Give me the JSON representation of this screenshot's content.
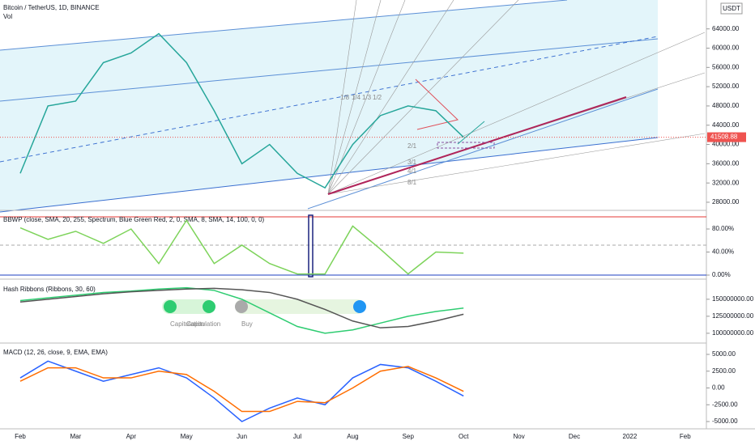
{
  "chart_data": [
    {
      "type": "line",
      "title": "Bitcoin / TetherUS, 1D, BINANCE",
      "subtitle": "Vol",
      "currency": "USDT",
      "last_value": 41508.88,
      "categories": [
        "Feb",
        null,
        "Mar",
        null,
        "Apr",
        null,
        "May",
        null,
        "Jun",
        null,
        "Jul",
        null,
        "Aug",
        null,
        "Sep",
        null,
        "Oct",
        null,
        "Nov",
        null,
        "Dec",
        null,
        "2022",
        null,
        "Feb"
      ],
      "values": [
        34000,
        48000,
        49000,
        57000,
        59000,
        63000,
        57000,
        47000,
        36000,
        40000,
        34000,
        31000,
        40000,
        46000,
        48000,
        47000,
        41508.88,
        null,
        null,
        null,
        null,
        null,
        null,
        null,
        null
      ],
      "color": "#26a69a",
      "ylim": [
        26650,
        70000
      ],
      "yticks": [
        {
          "value": 28000,
          "label": "28000.00"
        },
        {
          "value": 32000,
          "label": "32000.00"
        },
        {
          "value": 36000,
          "label": "36000.00"
        },
        {
          "value": 40000,
          "label": "40000.00"
        },
        {
          "value": 44000,
          "label": "44000.00"
        },
        {
          "value": 48000,
          "label": "48000.00"
        },
        {
          "value": 52000,
          "label": "52000.00"
        },
        {
          "value": 56000,
          "label": "56000.00"
        },
        {
          "value": 60000,
          "label": "60000.00"
        },
        {
          "value": 64000,
          "label": "64000.00"
        }
      ],
      "annotations": [
        "1/8",
        "1/4",
        "1/3",
        "1/2",
        "2/1",
        "3/1",
        "4/1",
        "8/1"
      ]
    },
    {
      "type": "line",
      "title": "BBWP (close, SMA, 20, 255, Spectrum, Blue Green Red, 2, 0, SMA, 8, SMA, 14, 100, 0, 0)",
      "values": [
        82,
        62,
        76,
        55,
        80,
        20,
        95,
        20,
        52,
        20,
        2,
        2,
        85,
        45,
        2,
        40,
        38,
        null,
        null,
        null,
        null,
        null,
        null,
        null,
        null
      ],
      "color": "#7dd35a",
      "ylim": [
        -4.2,
        109.5
      ],
      "yticks": [
        {
          "value": 0,
          "label": "0.00%"
        },
        {
          "value": 40,
          "label": "40.00%"
        },
        {
          "value": 80,
          "label": "80.00%"
        }
      ]
    },
    {
      "type": "line",
      "title": "Hash Ribbons (Ribbons, 30, 60)",
      "series": [
        {
          "color": "#2ecc71",
          "values": [
            148000000,
            152000000,
            156000000,
            160000000,
            162000000,
            165000000,
            167000000,
            163000000,
            150000000,
            130000000,
            110000000,
            100000000,
            105000000,
            115000000,
            125000000,
            132000000,
            137000000,
            null,
            null,
            null,
            null,
            null,
            null,
            null,
            null
          ]
        },
        {
          "color": "#555555",
          "values": [
            146000000,
            150000000,
            154000000,
            158000000,
            161000000,
            163000000,
            165000000,
            166000000,
            164000000,
            160000000,
            150000000,
            135000000,
            118000000,
            108000000,
            110000000,
            118000000,
            128000000,
            null,
            null,
            null,
            null,
            null,
            null,
            null,
            null
          ]
        }
      ],
      "ylim": [
        88000000,
        176000000
      ],
      "yticks": [
        {
          "value": 100000000,
          "label": "100000000.00"
        },
        {
          "value": 125000000,
          "label": "125000000.00"
        },
        {
          "value": 150000000,
          "label": "150000000.00"
        }
      ],
      "annotations": [
        "Capitulation",
        "Capitulation",
        "Buy"
      ]
    },
    {
      "type": "line",
      "title": "MACD (12, 26, close, 9, EMA, EMA)",
      "series": [
        {
          "color": "#2962ff",
          "values": [
            1500,
            4000,
            2500,
            1000,
            2000,
            3000,
            1500,
            -1500,
            -5000,
            -3000,
            -1500,
            -2500,
            1500,
            3500,
            3000,
            1000,
            -1200,
            null,
            null,
            null,
            null,
            null,
            null,
            null,
            null
          ]
        },
        {
          "color": "#ff6d00",
          "values": [
            1000,
            3000,
            3000,
            1500,
            1500,
            2500,
            2000,
            -500,
            -3500,
            -3500,
            -2000,
            -2200,
            0,
            2500,
            3200,
            1500,
            -500,
            null,
            null,
            null,
            null,
            null,
            null,
            null,
            null
          ]
        }
      ],
      "ylim": [
        -6084,
        6446
      ],
      "yticks": [
        {
          "value": -5000,
          "label": "-5000.00"
        },
        {
          "value": -2500,
          "label": "-2500.00"
        },
        {
          "value": 0,
          "label": "0.00"
        },
        {
          "value": 2500,
          "label": "2500.00"
        },
        {
          "value": 5000,
          "label": "5000.00"
        }
      ]
    }
  ]
}
